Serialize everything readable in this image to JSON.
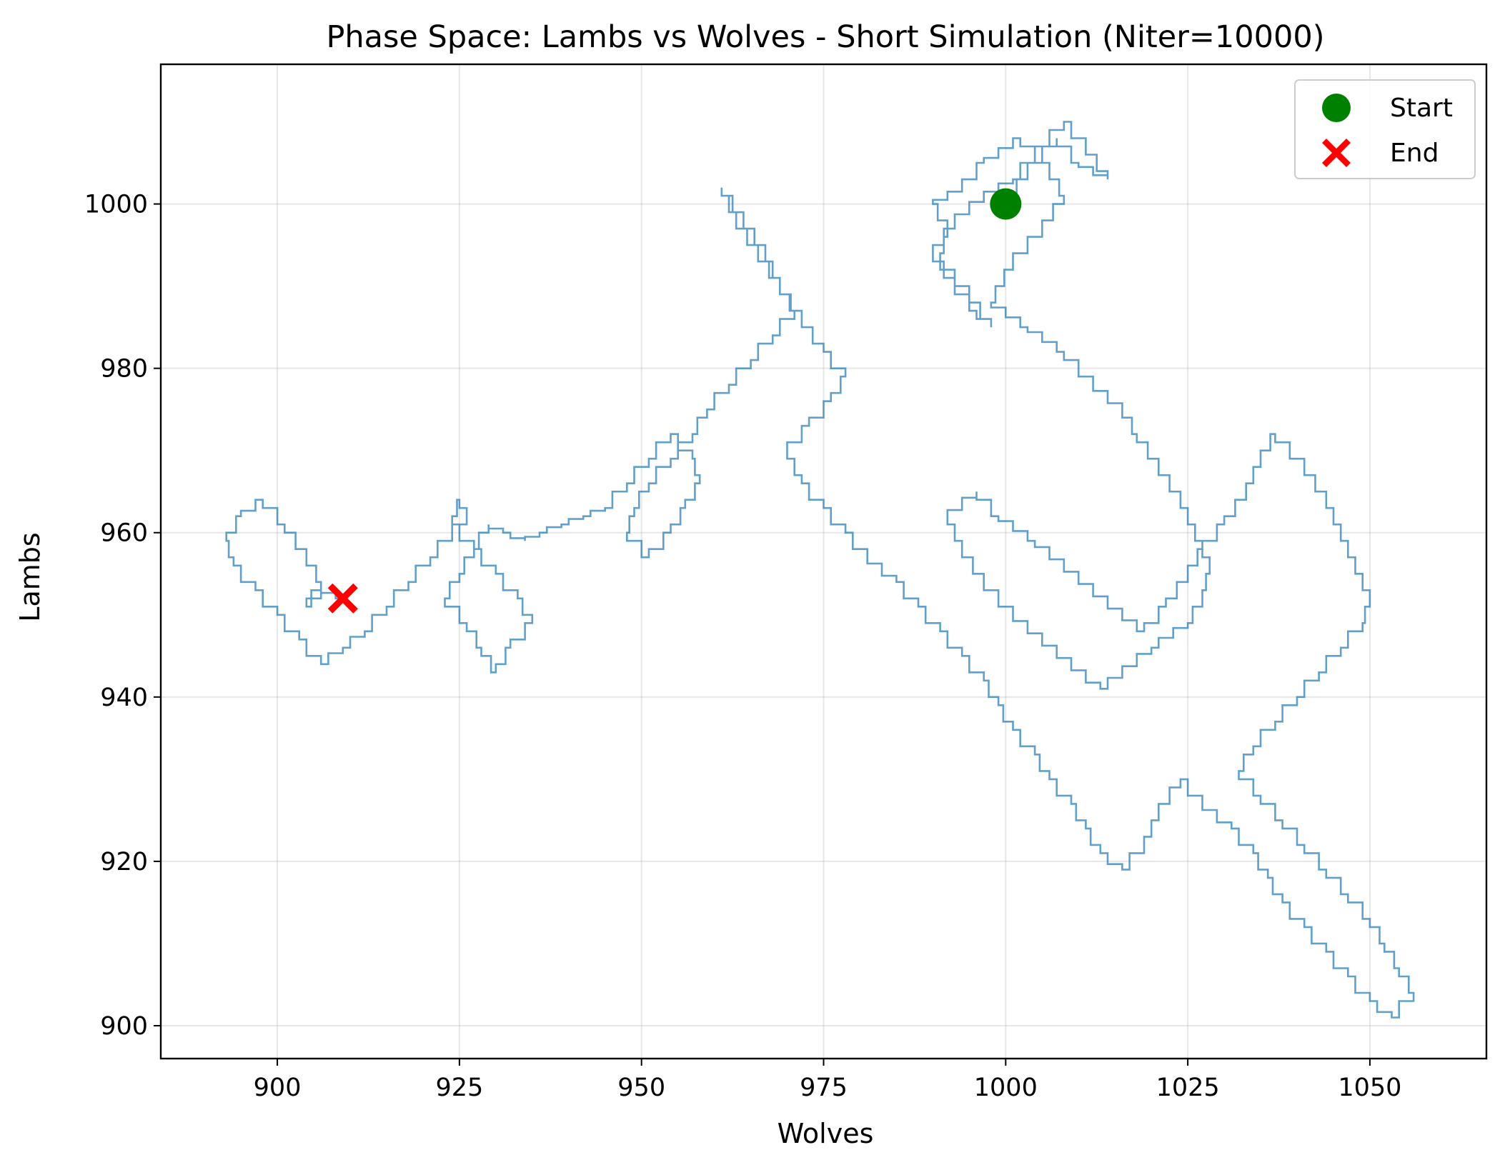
{
  "chart_data": {
    "type": "line",
    "title": "Phase Space: Lambs vs Wolves - Short Simulation (Niter=10000)",
    "xlabel": "Wolves",
    "ylabel": "Lambs",
    "xlim": [
      884,
      1066
    ],
    "ylim": [
      896,
      1017
    ],
    "xticks": [
      900,
      925,
      950,
      975,
      1000,
      1025,
      1050
    ],
    "yticks": [
      900,
      920,
      940,
      960,
      980,
      1000
    ],
    "grid": true,
    "legend_position": "top-right",
    "colors": {
      "trajectory": "#1f77b4",
      "start": "#008000",
      "end": "#ff0000"
    },
    "series": [
      {
        "name": "",
        "style": "steps",
        "x": [
          1000,
          1003,
          1007,
          1010,
          1014,
          1011,
          1008,
          1004,
          1001,
          997,
          993,
          990,
          993,
          996,
          998,
          995,
          991,
          992,
          990,
          994,
          997,
          1002,
          1006,
          1008,
          1005,
          1001,
          998,
          1003,
          1008,
          1012,
          1016,
          1018,
          1021,
          1024,
          1026,
          1028,
          1027,
          1025,
          1020,
          1016,
          1013,
          1009,
          1005,
          1001,
          997,
          994,
          992,
          996,
          999,
          1004,
          1008,
          1012,
          1016,
          1019,
          1022,
          1025,
          1027,
          1030,
          1033,
          1035,
          1037,
          1041,
          1044,
          1046,
          1048,
          1050,
          1049,
          1046,
          1043,
          1040,
          1037,
          1034,
          1032,
          1035,
          1038,
          1041,
          1044,
          1047,
          1050,
          1052,
          1054,
          1056,
          1053,
          1050,
          1047,
          1044,
          1041,
          1038,
          1036,
          1034,
          1031,
          1027,
          1024,
          1021,
          1019,
          1016,
          1013,
          1011,
          1009,
          1006,
          1004,
          1001,
          999,
          997,
          994,
          991,
          988,
          985,
          981,
          978,
          975,
          972,
          970,
          973,
          976,
          978,
          975,
          972,
          969,
          966,
          963,
          961,
          964,
          967,
          969,
          971,
          968,
          965,
          962,
          959,
          957,
          954,
          951,
          949,
          948,
          951,
          954,
          956,
          958,
          957,
          954,
          951,
          948,
          945,
          942,
          939,
          936,
          934,
          931,
          929,
          927,
          925,
          923,
          926,
          928,
          930,
          932,
          935,
          933,
          930,
          927,
          924,
          925,
          926,
          924,
          921,
          918,
          915,
          912,
          909,
          906,
          903,
          900,
          897,
          894,
          893,
          895,
          898,
          901,
          904,
          906,
          904,
          906,
          909
        ],
        "y": [
          1000,
          1004,
          1008,
          1005,
          1003,
          1007,
          1010,
          1006,
          1003,
          1001,
          998,
          994,
          990,
          987,
          985,
          989,
          993,
          997,
          1000,
          1002,
          1005,
          1008,
          1004,
          1001,
          997,
          993,
          988,
          985,
          982,
          978,
          975,
          972,
          968,
          964,
          960,
          956,
          952,
          949,
          946,
          943,
          941,
          944,
          947,
          950,
          954,
          958,
          962,
          965,
          962,
          959,
          956,
          953,
          950,
          948,
          951,
          955,
          958,
          961,
          965,
          969,
          972,
          968,
          964,
          960,
          956,
          952,
          949,
          946,
          943,
          940,
          937,
          934,
          931,
          928,
          925,
          922,
          919,
          916,
          913,
          910,
          907,
          904,
          901,
          903,
          906,
          909,
          912,
          915,
          918,
          921,
          924,
          927,
          930,
          926,
          922,
          919,
          921,
          924,
          927,
          930,
          933,
          936,
          939,
          942,
          945,
          948,
          951,
          954,
          957,
          960,
          963,
          966,
          970,
          973,
          976,
          979,
          982,
          986,
          990,
          994,
          998,
          1002,
          998,
          994,
          990,
          987,
          984,
          981,
          978,
          975,
          972,
          969,
          966,
          963,
          960,
          957,
          960,
          963,
          966,
          969,
          972,
          969,
          966,
          963,
          962,
          961,
          960,
          959,
          960,
          961,
          958,
          955,
          952,
          949,
          946,
          943,
          946,
          949,
          952,
          955,
          958,
          961,
          964,
          962,
          960,
          957,
          954,
          951,
          948,
          946,
          944,
          947,
          950,
          953,
          956,
          959,
          962,
          964,
          961,
          957,
          954,
          951,
          953,
          952
        ]
      }
    ],
    "markers": [
      {
        "name": "Start",
        "x": 1000,
        "y": 1000,
        "shape": "circle",
        "color": "#008000"
      },
      {
        "name": "End",
        "x": 909,
        "y": 952,
        "shape": "x",
        "color": "#ff0000"
      }
    ]
  }
}
